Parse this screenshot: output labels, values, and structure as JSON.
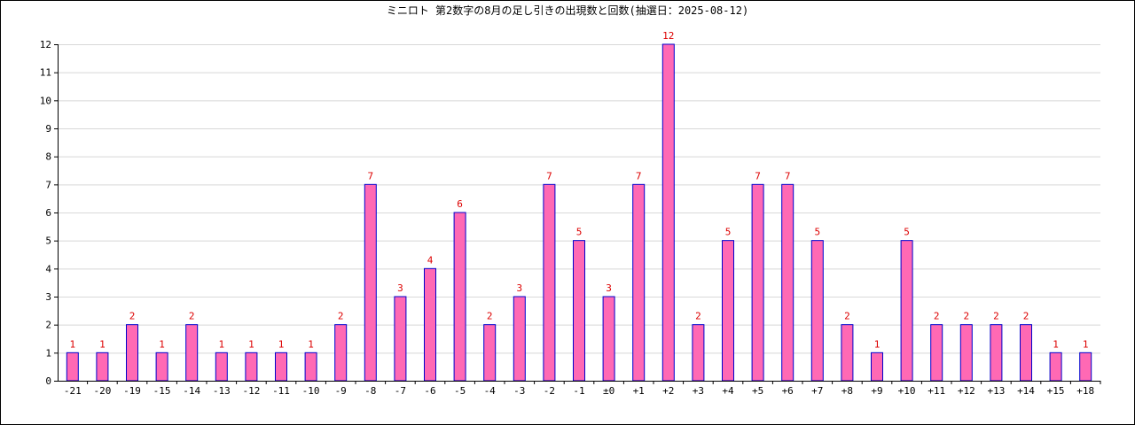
{
  "chart_data": {
    "type": "bar",
    "title": "ミニロト 第2数字の8月の足し引きの出現数と回数(抽選日：2025-08-12)",
    "xlabel": "",
    "ylabel": "",
    "ylim": [
      0,
      12
    ],
    "yticks": [
      "0",
      "1",
      "2",
      "3",
      "4",
      "5",
      "6",
      "7",
      "8",
      "9",
      "10",
      "11",
      "12"
    ],
    "grid": true,
    "legend": "none",
    "categories": [
      "-21",
      "-20",
      "-19",
      "-15",
      "-14",
      "-13",
      "-12",
      "-11",
      "-10",
      "-9",
      "-8",
      "-7",
      "-6",
      "-5",
      "-4",
      "-3",
      "-2",
      "-1",
      "±0",
      "+1",
      "+2",
      "+3",
      "+4",
      "+5",
      "+6",
      "+7",
      "+8",
      "+9",
      "+10",
      "+11",
      "+12",
      "+13",
      "+14",
      "+15",
      "+18"
    ],
    "values": [
      1,
      1,
      2,
      1,
      2,
      1,
      1,
      1,
      1,
      2,
      7,
      3,
      4,
      6,
      2,
      3,
      7,
      5,
      3,
      7,
      12,
      2,
      5,
      7,
      7,
      5,
      2,
      1,
      5,
      2,
      2,
      2,
      2,
      1,
      1
    ],
    "colors": {
      "bar_fill": "#ff69b4",
      "bar_stroke": "#0000cc",
      "value_label": "#dd0000",
      "grid": "#d8d8d8",
      "axis": "#000000"
    }
  }
}
